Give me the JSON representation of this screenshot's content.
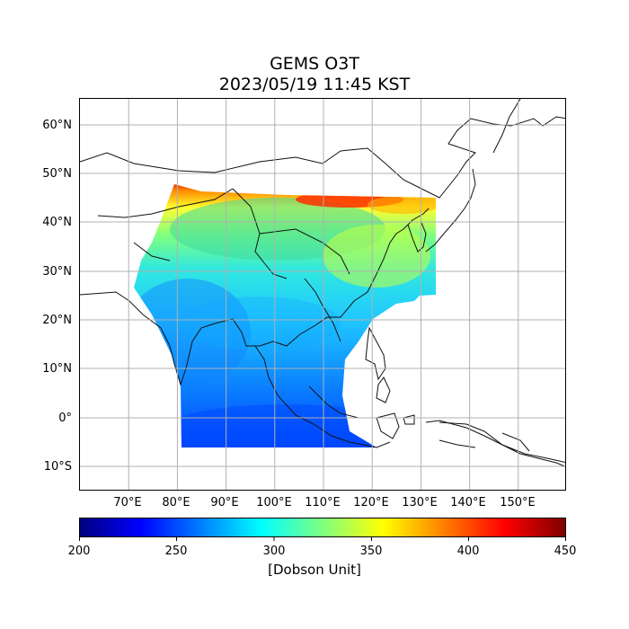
{
  "title": "GEMS O3T",
  "subtitle": "2023/05/19 11:45 KST",
  "map": {
    "lon_range": [
      60,
      160
    ],
    "lat_range": [
      -15,
      65
    ],
    "lon_ticks": [
      "70°E",
      "80°E",
      "90°E",
      "100°E",
      "110°E",
      "120°E",
      "130°E",
      "140°E",
      "150°E"
    ],
    "lat_ticks": [
      "60°N",
      "50°N",
      "40°N",
      "30°N",
      "20°N",
      "10°N",
      "0°",
      "10°S"
    ],
    "grid": true
  },
  "colorbar": {
    "label": "[Dobson Unit]",
    "range": [
      200,
      450
    ],
    "ticks": [
      "200",
      "250",
      "300",
      "350",
      "400",
      "450"
    ],
    "colormap": "jet",
    "colors": [
      "#00007f",
      "#0000ff",
      "#007fff",
      "#00ffff",
      "#7fff7f",
      "#ffff00",
      "#ff7f00",
      "#ff0000",
      "#7f0000"
    ]
  }
}
